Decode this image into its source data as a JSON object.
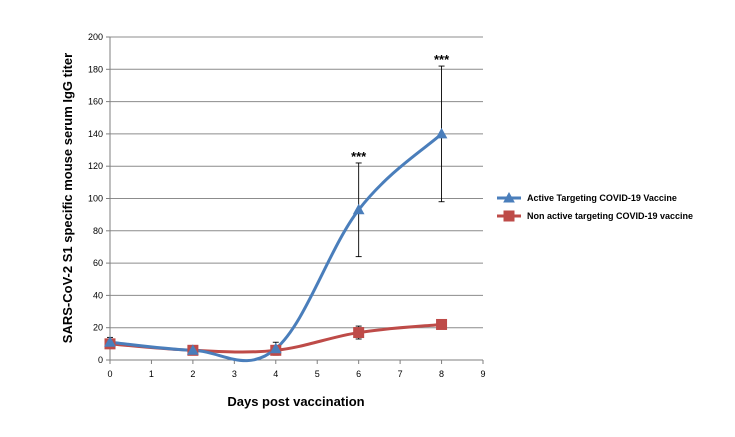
{
  "chart_data": {
    "type": "line",
    "title": "",
    "xlabel": "Days post vaccination",
    "ylabel": "SARS-CoV-2 S1 specific mouse serum IgG titer",
    "xlim": [
      0,
      9
    ],
    "ylim": [
      0,
      200
    ],
    "x_ticks": [
      0,
      1,
      2,
      3,
      4,
      5,
      6,
      7,
      8,
      9
    ],
    "y_ticks": [
      0,
      20,
      40,
      60,
      80,
      100,
      120,
      140,
      160,
      180,
      200
    ],
    "grid": "horizontal",
    "legend_position": "right",
    "series": [
      {
        "name": "Active Targeting COVID-19 Vaccine",
        "color": "#4a7ebb",
        "marker": "triangle",
        "x": [
          0,
          2,
          4,
          6,
          8
        ],
        "y": [
          11,
          6,
          7,
          93,
          140
        ],
        "error": [
          3,
          1,
          4,
          29,
          42
        ]
      },
      {
        "name": "Non active targeting COVID-19 vaccine",
        "color": "#be4b48",
        "marker": "square",
        "x": [
          0,
          2,
          4,
          6,
          8
        ],
        "y": [
          10,
          6,
          6,
          17,
          22
        ],
        "error": [
          2,
          1,
          1,
          4,
          2
        ]
      }
    ],
    "annotations": [
      {
        "x": 6,
        "y": 122,
        "text": "***"
      },
      {
        "x": 8,
        "y": 182,
        "text": "***"
      }
    ]
  }
}
